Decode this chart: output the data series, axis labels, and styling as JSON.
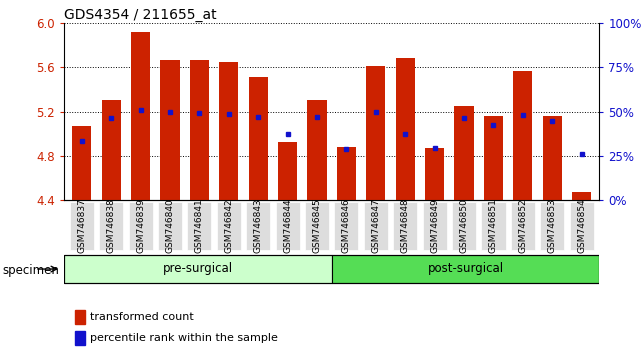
{
  "title": "GDS4354 / 211655_at",
  "samples": [
    "GSM746837",
    "GSM746838",
    "GSM746839",
    "GSM746840",
    "GSM746841",
    "GSM746842",
    "GSM746843",
    "GSM746844",
    "GSM746845",
    "GSM746846",
    "GSM746847",
    "GSM746848",
    "GSM746849",
    "GSM746850",
    "GSM746851",
    "GSM746852",
    "GSM746853",
    "GSM746854"
  ],
  "bar_values": [
    5.07,
    5.3,
    5.92,
    5.67,
    5.67,
    5.65,
    5.51,
    4.92,
    5.3,
    4.88,
    5.61,
    5.68,
    4.87,
    5.25,
    5.16,
    5.57,
    5.16,
    4.47
  ],
  "percentile_values": [
    4.93,
    5.14,
    5.21,
    5.2,
    5.19,
    5.18,
    5.15,
    5.0,
    5.15,
    4.86,
    5.2,
    5.0,
    4.87,
    5.14,
    5.08,
    5.17,
    5.11,
    4.82
  ],
  "ymin": 4.4,
  "ymax": 6.0,
  "yticks": [
    4.4,
    4.8,
    5.2,
    5.6,
    6.0
  ],
  "right_yticks": [
    0,
    25,
    50,
    75,
    100
  ],
  "bar_color": "#cc2200",
  "dot_color": "#1111cc",
  "pre_surgical_count": 9,
  "post_surgical_count": 9,
  "group_color_pre": "#ccffcc",
  "group_color_post": "#55dd55",
  "group_label_pre": "pre-surgical",
  "group_label_post": "post-surgical",
  "specimen_label": "specimen",
  "legend_bar_label": "transformed count",
  "legend_dot_label": "percentile rank within the sample",
  "title_fontsize": 10,
  "axis_color_red": "#cc2200",
  "axis_color_blue": "#1111cc",
  "tick_bg_color": "#dddddd"
}
